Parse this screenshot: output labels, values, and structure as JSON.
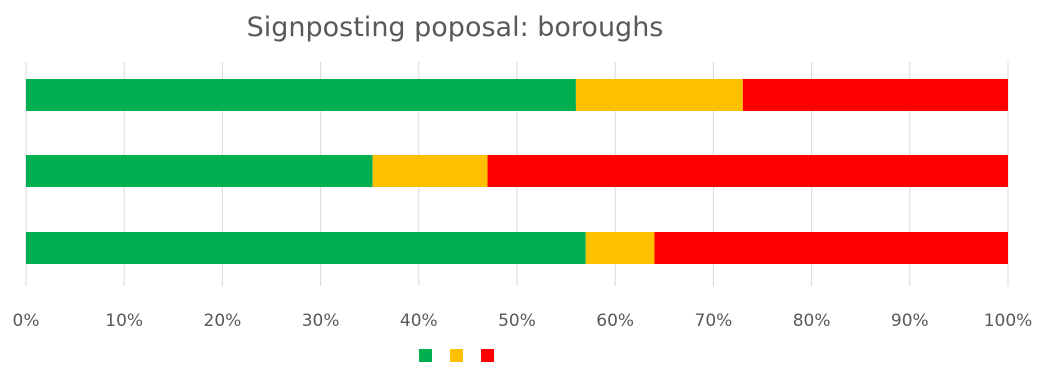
{
  "chart_data": {
    "type": "bar",
    "orientation": "horizontal",
    "stacked": "percent",
    "title": "Signposting poposal: boroughs",
    "xlabel": "",
    "ylabel": "",
    "xlim": [
      0,
      100
    ],
    "x_ticks": [
      "0%",
      "10%",
      "20%",
      "30%",
      "40%",
      "50%",
      "60%",
      "70%",
      "80%",
      "90%",
      "100%"
    ],
    "categories": [
      "",
      "",
      ""
    ],
    "series": [
      {
        "name": "",
        "color": "#00b050",
        "values": [
          56,
          35.3,
          57
        ]
      },
      {
        "name": "",
        "color": "#ffc000",
        "values": [
          17,
          11.7,
          7
        ]
      },
      {
        "name": "",
        "color": "#ff0000",
        "values": [
          27,
          53,
          36
        ]
      }
    ],
    "grid": true,
    "legend": "bottom"
  }
}
